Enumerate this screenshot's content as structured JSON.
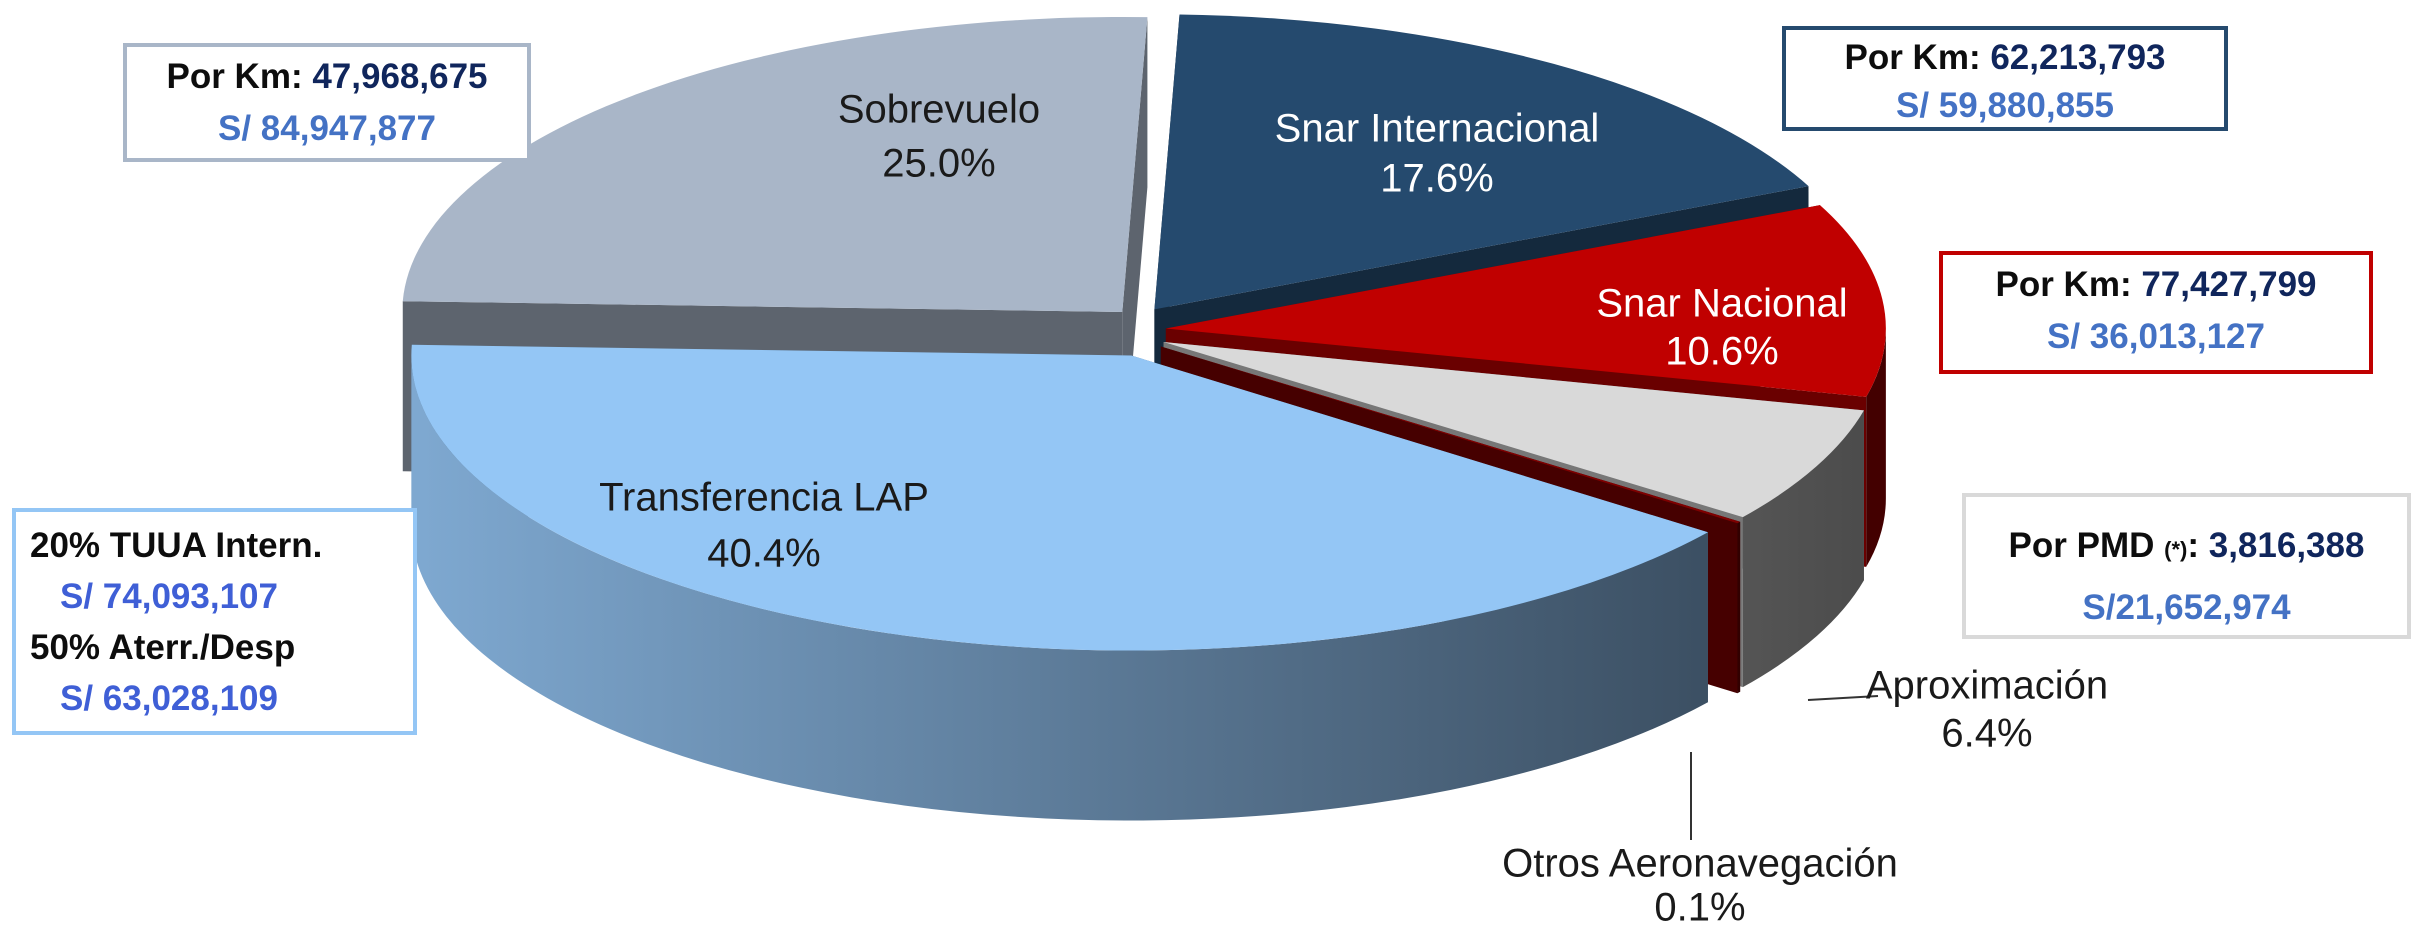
{
  "chart_data": {
    "type": "pie",
    "categories": [
      "Snar Internacional",
      "Snar Nacional",
      "Aproximación",
      "Otros Aeronavegación",
      "Transferencia LAP",
      "Sobrevuelo"
    ],
    "values": [
      17.6,
      10.6,
      6.4,
      0.1,
      40.4,
      25.0
    ],
    "value_labels": [
      "17.6%",
      "10.6%",
      "6.4%",
      "0.1%",
      "40.4%",
      "25.0%"
    ],
    "colors": [
      "#254a6e",
      "#c00000",
      "#d9d9d9",
      "#7f0000",
      "#94c6f5",
      "#a9b6c8"
    ],
    "callouts": [
      {
        "border": "#a9b6c8",
        "rows": [
          [
            {
              "text": "Por Km:",
              "color": "#0d0d0d"
            },
            {
              "text": "47,968,675",
              "color": "#10265c"
            }
          ],
          [
            {
              "text": "S/ 84,947,877",
              "color": "#4472c4"
            }
          ]
        ]
      },
      {
        "border": "#254a6e",
        "rows": [
          [
            {
              "text": "Por Km:",
              "color": "#0d0d0d"
            },
            {
              "text": "62,213,793",
              "color": "#10265c"
            }
          ],
          [
            {
              "text": "S/ 59,880,855",
              "color": "#4472c4"
            }
          ]
        ]
      },
      {
        "border": "#c00000",
        "rows": [
          [
            {
              "text": "Por Km:",
              "color": "#0d0d0d"
            },
            {
              "text": "77,427,799",
              "color": "#10265c"
            }
          ],
          [
            {
              "text": "S/ 36,013,127",
              "color": "#4472c4"
            }
          ]
        ]
      },
      {
        "border": "#d9d9d9",
        "rows": [
          [
            {
              "text": "Por PMD",
              "color": "#0d0d0d"
            },
            {
              "text": "(*)",
              "color": "#0d0d0d",
              "small": true
            },
            {
              "text": ":",
              "color": "#0d0d0d"
            },
            {
              "text": "3,816,388",
              "color": "#10265c"
            }
          ],
          [
            {
              "text": "S/21,652,974",
              "color": "#4472c4"
            }
          ]
        ]
      },
      {
        "border": "#94c6f5",
        "align": "left",
        "rows": [
          [
            {
              "text": "20% TUUA Intern.",
              "color": "#0d0d0d"
            }
          ],
          [
            {
              "text": "S/ 74,093,107",
              "color": "#3f5fd6"
            }
          ],
          [
            {
              "text": "50% Aterr./Desp",
              "color": "#0d0d0d"
            }
          ],
          [
            {
              "text": "S/ 63,028,109",
              "color": "#3f5fd6"
            }
          ]
        ]
      }
    ]
  }
}
